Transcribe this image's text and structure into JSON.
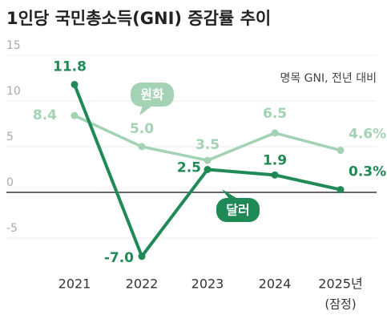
{
  "chart_data": {
    "type": "line",
    "title": "1인당 국민총소득(GNI) 증감률 추이",
    "subtitle": "명목 GNI, 전년 대비",
    "categories": [
      "2021",
      "2022",
      "2023",
      "2024",
      "2025년"
    ],
    "category_note": "(잠정)",
    "series": [
      {
        "name": "원화",
        "color": "#a3d2b4",
        "values": [
          8.4,
          5.0,
          3.5,
          6.5,
          4.6
        ],
        "value_labels": [
          "8.4",
          "5.0",
          "3.5",
          "6.5",
          "4.6%"
        ]
      },
      {
        "name": "달러",
        "color": "#1f8a56",
        "values": [
          11.8,
          -7.0,
          2.5,
          1.9,
          0.3
        ],
        "value_labels": [
          "11.8",
          "-7.0",
          "2.5",
          "1.9",
          "0.3%"
        ]
      }
    ],
    "ylim": [
      -8,
      16
    ],
    "yticks": [
      -5,
      0,
      5,
      10,
      15
    ]
  }
}
